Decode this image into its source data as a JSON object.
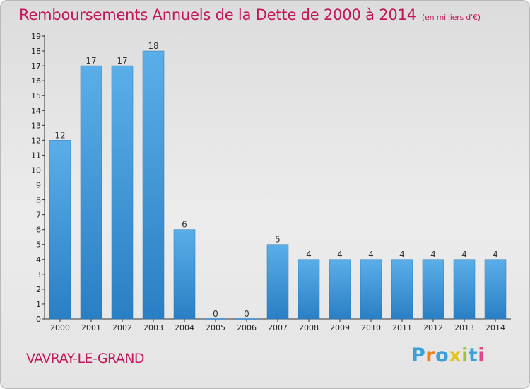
{
  "header": {
    "title": "Remboursements Annuels de la Dette de 2000 à 2014",
    "subtitle": "(en milliers d'€)"
  },
  "footer": {
    "commune": "VAVRAY-LE-GRAND",
    "logo_letters": [
      {
        "char": "P",
        "color": "#3aa0d8"
      },
      {
        "char": "r",
        "color": "#f07d1e"
      },
      {
        "char": "o",
        "color": "#3aa0d8"
      },
      {
        "char": "x",
        "color": "#e6c51a"
      },
      {
        "char": "i",
        "color": "#9bc73b"
      },
      {
        "char": "t",
        "color": "#3aa0d8"
      },
      {
        "char": "i",
        "color": "#e04a8a"
      }
    ]
  },
  "chart_data": {
    "type": "bar",
    "title": "Remboursements Annuels de la Dette de 2000 à 2014",
    "subtitle": "(en milliers d'€)",
    "categories": [
      "2000",
      "2001",
      "2002",
      "2003",
      "2004",
      "2005",
      "2006",
      "2007",
      "2008",
      "2009",
      "2010",
      "2011",
      "2012",
      "2013",
      "2014"
    ],
    "values": [
      12,
      17,
      17,
      18,
      6,
      0,
      0,
      5,
      4,
      4,
      4,
      4,
      4,
      4,
      4
    ],
    "y_ticks": [
      0,
      1,
      2,
      3,
      4,
      5,
      6,
      7,
      8,
      9,
      10,
      11,
      12,
      13,
      14,
      15,
      16,
      17,
      18,
      19
    ],
    "ylim": [
      0,
      19
    ],
    "grid": false,
    "bar_color_top": "#5aaee8",
    "bar_color_bottom": "#2a7fc4",
    "xlabel": "",
    "ylabel": ""
  }
}
